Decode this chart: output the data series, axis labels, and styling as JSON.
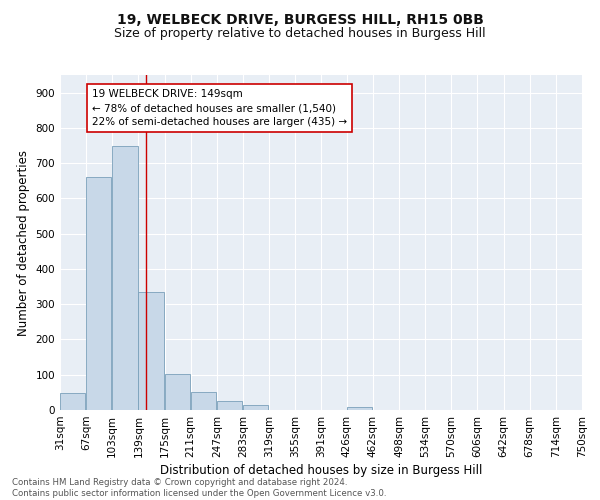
{
  "title1": "19, WELBECK DRIVE, BURGESS HILL, RH15 0BB",
  "title2": "Size of property relative to detached houses in Burgess Hill",
  "xlabel": "Distribution of detached houses by size in Burgess Hill",
  "ylabel": "Number of detached properties",
  "bin_labels": [
    "31sqm",
    "67sqm",
    "103sqm",
    "139sqm",
    "175sqm",
    "211sqm",
    "247sqm",
    "283sqm",
    "319sqm",
    "355sqm",
    "391sqm",
    "426sqm",
    "462sqm",
    "498sqm",
    "534sqm",
    "570sqm",
    "606sqm",
    "642sqm",
    "678sqm",
    "714sqm",
    "750sqm"
  ],
  "bar_values": [
    48,
    660,
    750,
    335,
    103,
    50,
    25,
    15,
    0,
    0,
    0,
    8,
    0,
    0,
    0,
    0,
    0,
    0,
    0,
    0
  ],
  "bin_edges": [
    31,
    67,
    103,
    139,
    175,
    211,
    247,
    283,
    319,
    355,
    391,
    426,
    462,
    498,
    534,
    570,
    606,
    642,
    678,
    714,
    750
  ],
  "bar_color": "#c8d8e8",
  "bar_edge_color": "#7aa0ba",
  "vline_x": 149,
  "vline_color": "#cc0000",
  "annotation_text": "19 WELBECK DRIVE: 149sqm\n← 78% of detached houses are smaller (1,540)\n22% of semi-detached houses are larger (435) →",
  "annotation_box_color": "#ffffff",
  "annotation_box_edge": "#cc0000",
  "ylim": [
    0,
    950
  ],
  "yticks": [
    0,
    100,
    200,
    300,
    400,
    500,
    600,
    700,
    800,
    900
  ],
  "xlim": [
    31,
    750
  ],
  "background_color": "#e8eef5",
  "footer_text": "Contains HM Land Registry data © Crown copyright and database right 2024.\nContains public sector information licensed under the Open Government Licence v3.0.",
  "title_fontsize": 10,
  "subtitle_fontsize": 9,
  "axis_label_fontsize": 8.5,
  "tick_fontsize": 7.5,
  "annotation_fontsize": 7.5,
  "footer_fontsize": 6.2
}
